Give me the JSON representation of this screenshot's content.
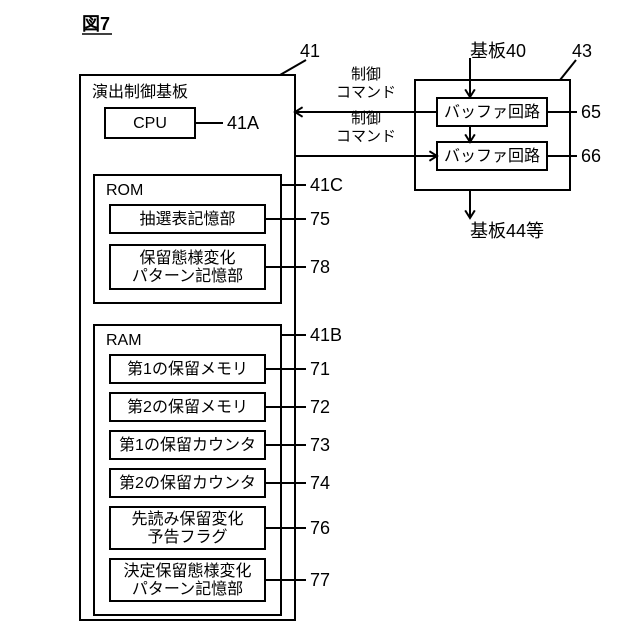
{
  "figure_label": "図7",
  "main_board": {
    "title": "演出制御基板",
    "ref": "41",
    "cpu": {
      "label": "CPU",
      "ref": "41A"
    },
    "rom": {
      "title": "ROM",
      "ref": "41C",
      "items": [
        {
          "label": "抽選表記憶部",
          "ref": "75"
        },
        {
          "label": "保留態様変化\nパターン記憶部",
          "ref": "78"
        }
      ]
    },
    "ram": {
      "title": "RAM",
      "ref": "41B",
      "items": [
        {
          "label": "第1の保留メモリ",
          "ref": "71"
        },
        {
          "label": "第2の保留メモリ",
          "ref": "72"
        },
        {
          "label": "第1の保留カウンタ",
          "ref": "73"
        },
        {
          "label": "第2の保留カウンタ",
          "ref": "74"
        },
        {
          "label": "先読み保留変化\n予告フラグ",
          "ref": "76"
        },
        {
          "label": "決定保留態様変化\nパターン記憶部",
          "ref": "77"
        }
      ]
    }
  },
  "right_board": {
    "ref": "43",
    "top_label": "基板40",
    "buffers": [
      {
        "label": "バッファ回路",
        "ref": "65"
      },
      {
        "label": "バッファ回路",
        "ref": "66"
      }
    ],
    "bottom_label": "基板44等",
    "cmd_label": "制御\nコマンド"
  },
  "style": {
    "stroke": "#000000",
    "stroke_width": 2,
    "fill": "#ffffff",
    "font_size_box": 16,
    "font_size_ref": 18
  }
}
